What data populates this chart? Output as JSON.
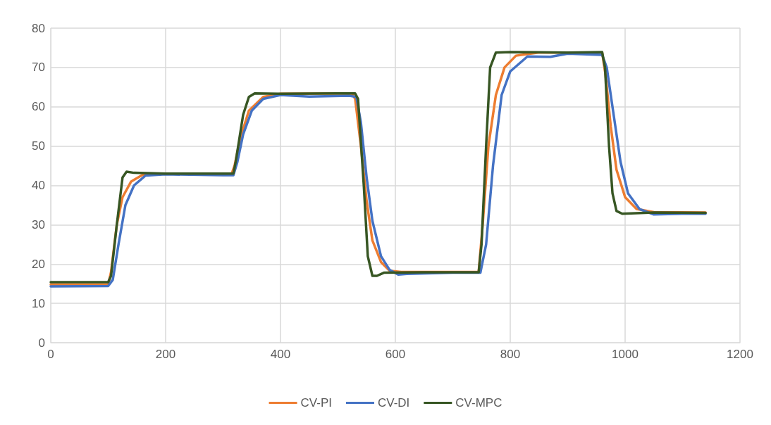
{
  "chart_data": {
    "type": "line",
    "xlim": [
      0,
      1200
    ],
    "xticks": [
      0,
      200,
      400,
      600,
      800,
      1000,
      1200
    ],
    "ylim": [
      0,
      80
    ],
    "yticks": [
      0,
      10,
      20,
      30,
      40,
      50,
      60,
      70,
      80
    ],
    "grid": true,
    "legend": "bottom",
    "marker": "none",
    "line_style": "solid",
    "series": [
      {
        "name": "CV-PI",
        "color": "#ed7d31",
        "x": [
          0,
          100,
          105,
          115,
          125,
          140,
          160,
          200,
          315,
          320,
          330,
          345,
          370,
          400,
          525,
          530,
          540,
          550,
          560,
          575,
          590,
          610,
          745,
          752,
          762,
          775,
          790,
          810,
          850,
          960,
          966,
          975,
          985,
          1000,
          1020,
          1050,
          1140
        ],
        "values": [
          14.8,
          14.8,
          18,
          30,
          37,
          41,
          42.7,
          43,
          43,
          45,
          52,
          59,
          62.5,
          63.3,
          63.4,
          62,
          50,
          36,
          26,
          20.5,
          18.3,
          18,
          18,
          30,
          50,
          63,
          70,
          73,
          73.8,
          73.8,
          68,
          55,
          44,
          37,
          34,
          33.2,
          33.1
        ]
      },
      {
        "name": "CV-DI",
        "color": "#4472c4",
        "x": [
          0,
          100,
          108,
          118,
          130,
          145,
          165,
          200,
          300,
          318,
          325,
          335,
          350,
          370,
          400,
          450,
          520,
          532,
          540,
          550,
          560,
          575,
          590,
          605,
          620,
          700,
          748,
          758,
          770,
          785,
          800,
          830,
          870,
          900,
          960,
          968,
          980,
          992,
          1005,
          1025,
          1050,
          1100,
          1140
        ],
        "values": [
          14.3,
          14.4,
          16,
          25,
          35,
          40,
          42.5,
          42.8,
          42.6,
          42.6,
          46,
          53,
          59,
          62,
          63,
          62.6,
          62.8,
          62.5,
          56,
          42,
          31,
          22,
          18.5,
          17.3,
          17.5,
          17.8,
          17.8,
          25,
          45,
          63,
          69,
          72.8,
          72.7,
          73.5,
          73.2,
          70,
          58,
          46,
          38,
          34,
          32.6,
          32.8,
          32.8
        ]
      },
      {
        "name": "CV-MPC",
        "color": "#375623",
        "x": [
          0,
          100,
          105,
          115,
          125,
          132,
          145,
          200,
          300,
          318,
          322,
          335,
          345,
          355,
          400,
          500,
          530,
          535,
          545,
          552,
          560,
          568,
          580,
          650,
          745,
          750,
          758,
          765,
          775,
          800,
          900,
          960,
          965,
          972,
          978,
          985,
          995,
          1050,
          1140
        ],
        "values": [
          15.4,
          15.4,
          17,
          30,
          42,
          43.5,
          43.2,
          43,
          43,
          43,
          46,
          58,
          62.5,
          63.4,
          63.3,
          63.4,
          63.4,
          62,
          40,
          22,
          17,
          17,
          17.8,
          17.9,
          17.9,
          25,
          50,
          70,
          73.8,
          73.9,
          73.8,
          73.9,
          70,
          50,
          38,
          33.5,
          32.8,
          33.1,
          33
        ]
      }
    ]
  }
}
